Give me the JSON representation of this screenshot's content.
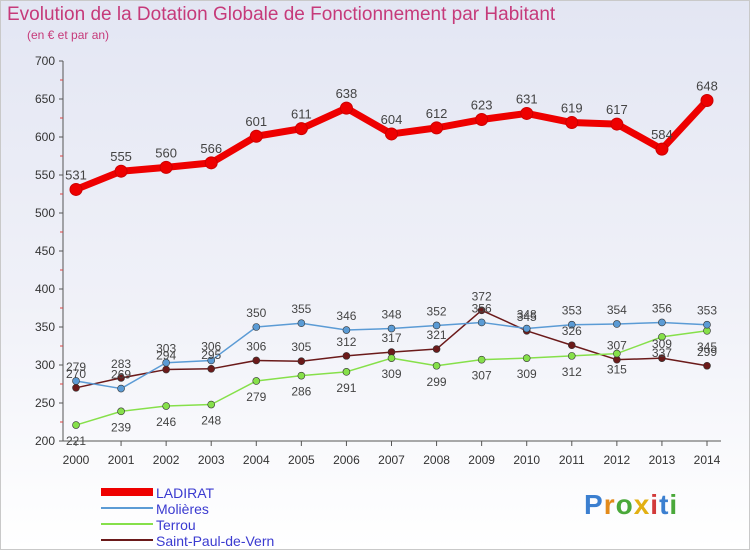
{
  "header": {
    "title": "Evolution de la Dotation Globale de Fonctionnement par Habitant",
    "subtitle": "(en € et par an)"
  },
  "logo": {
    "text": "Proxiti"
  },
  "chart_data": {
    "type": "line",
    "title": "Evolution de la Dotation Globale de Fonctionnement par Habitant",
    "subtitle": "(en € et par an)",
    "xlabel": "",
    "ylabel": "",
    "categories": [
      "2000",
      "2001",
      "2002",
      "2003",
      "2004",
      "2005",
      "2006",
      "2007",
      "2008",
      "2009",
      "2010",
      "2011",
      "2012",
      "2013",
      "2014"
    ],
    "ylim": [
      200,
      700
    ],
    "yticks": [
      200,
      250,
      300,
      350,
      400,
      450,
      500,
      550,
      600,
      650,
      700
    ],
    "grid": false,
    "legend_position": "bottom-left",
    "series": [
      {
        "name": "LADIRAT",
        "color": "#ee0000",
        "values": [
          531,
          555,
          560,
          566,
          601,
          611,
          638,
          604,
          612,
          623,
          631,
          619,
          617,
          584,
          648
        ]
      },
      {
        "name": "Molières",
        "color": "#5b9bd5",
        "values": [
          279,
          269,
          303,
          306,
          350,
          355,
          346,
          348,
          352,
          356,
          348,
          353,
          354,
          356,
          353
        ]
      },
      {
        "name": "Terrou",
        "color": "#86e04a",
        "values": [
          221,
          239,
          246,
          248,
          279,
          286,
          291,
          309,
          299,
          307,
          309,
          312,
          315,
          337,
          345
        ]
      },
      {
        "name": "Saint-Paul-de-Vern",
        "color": "#6b1a1a",
        "values": [
          270,
          283,
          294,
          295,
          306,
          305,
          312,
          317,
          321,
          372,
          345,
          326,
          307,
          309,
          299
        ]
      }
    ]
  }
}
